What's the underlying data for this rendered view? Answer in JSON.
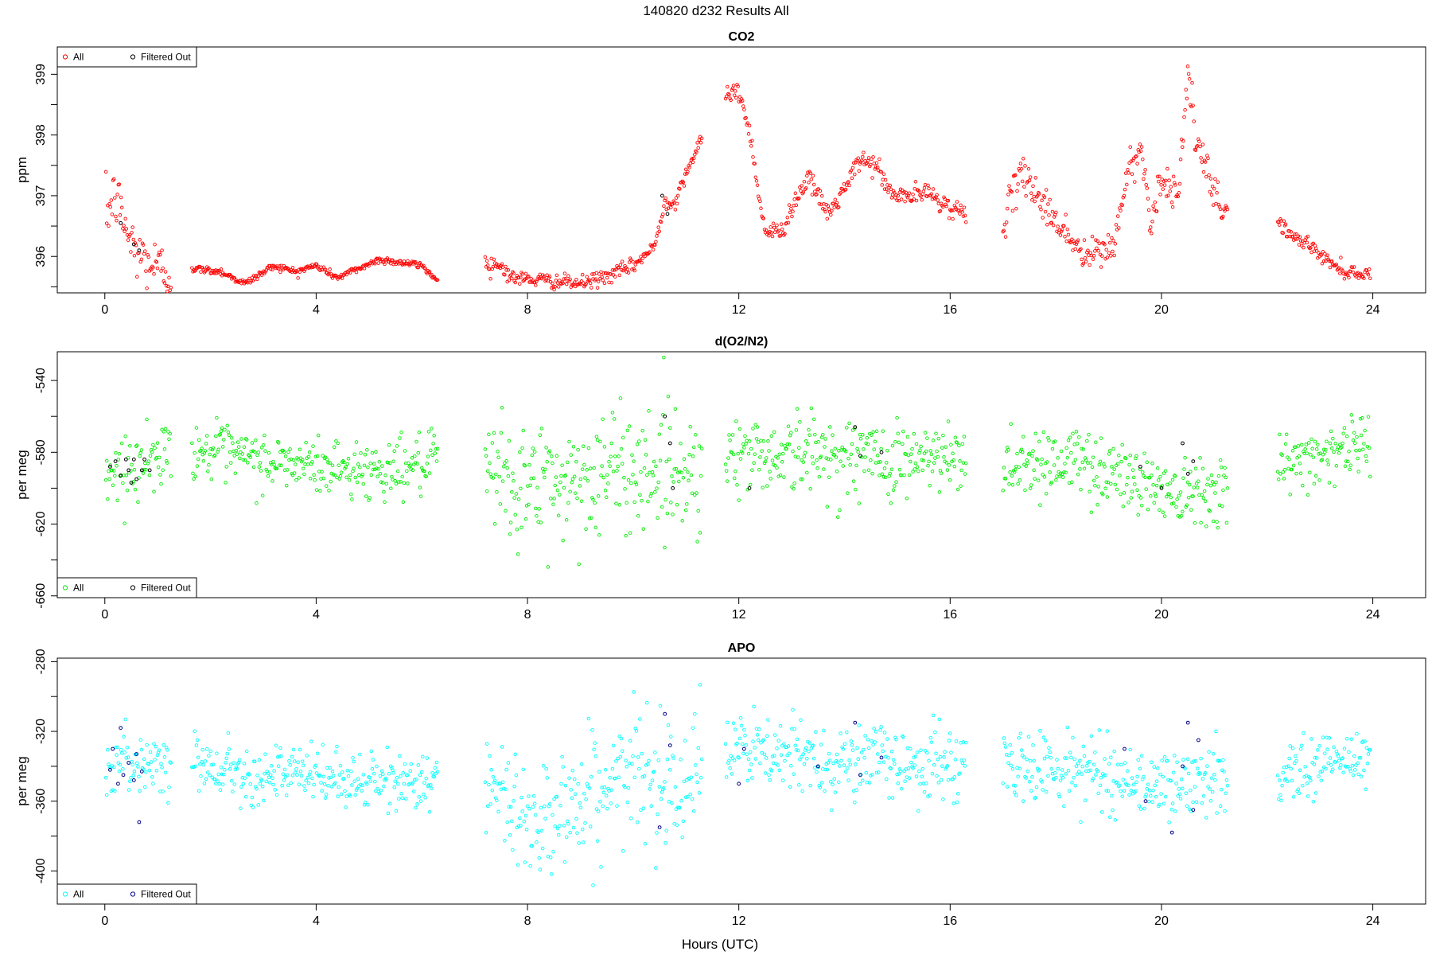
{
  "figure_title": "140820   d232   Results All",
  "xlabel": "Hours (UTC)",
  "chart_data": [
    {
      "type": "scatter",
      "title": "CO2",
      "ylabel": "ppm",
      "xlim": [
        -0.9,
        25.0
      ],
      "ylim": [
        395.4,
        399.45
      ],
      "xticks": [
        "0",
        "4",
        "8",
        "12",
        "16",
        "20",
        "24"
      ],
      "yticks": [
        "396",
        "397",
        "398",
        "399"
      ],
      "legend_position": "top-left",
      "legend": [
        "All",
        "Filtered Out"
      ],
      "colors": {
        "all": "#ff0000",
        "filtered": "#000000"
      },
      "noise": 0.03,
      "segments": [
        {
          "start": 0.02,
          "end": 1.25,
          "anchors": [
            [
              0.02,
              396.7
            ],
            [
              0.2,
              397.0
            ],
            [
              0.35,
              396.6
            ],
            [
              0.5,
              396.2
            ],
            [
              0.7,
              396.0
            ],
            [
              1.0,
              395.8
            ],
            [
              1.25,
              395.7
            ]
          ],
          "noise": 0.25
        },
        {
          "start": 1.65,
          "end": 6.3,
          "anchors": [
            [
              1.65,
              395.8
            ],
            [
              2.2,
              395.75
            ],
            [
              2.65,
              395.55
            ],
            [
              3.2,
              395.85
            ],
            [
              3.6,
              395.75
            ],
            [
              4.0,
              395.85
            ],
            [
              4.4,
              395.65
            ],
            [
              4.8,
              395.8
            ],
            [
              5.2,
              395.95
            ],
            [
              5.6,
              395.9
            ],
            [
              6.0,
              395.85
            ],
            [
              6.3,
              395.6
            ]
          ]
        },
        {
          "start": 7.2,
          "end": 11.3,
          "anchors": [
            [
              7.2,
              395.9
            ],
            [
              7.5,
              395.85
            ],
            [
              7.7,
              395.65
            ],
            [
              8.4,
              395.6
            ],
            [
              9.0,
              395.55
            ],
            [
              9.6,
              395.7
            ],
            [
              10.0,
              395.85
            ],
            [
              10.4,
              396.15
            ],
            [
              10.6,
              396.9
            ],
            [
              10.8,
              396.9
            ],
            [
              11.0,
              397.4
            ],
            [
              11.3,
              397.9
            ]
          ],
          "noise": 0.06
        },
        {
          "start": 11.75,
          "end": 16.3,
          "anchors": [
            [
              11.75,
              398.6
            ],
            [
              11.95,
              398.8
            ],
            [
              12.2,
              398.1
            ],
            [
              12.35,
              397.2
            ],
            [
              12.5,
              396.4
            ],
            [
              12.8,
              396.4
            ],
            [
              13.0,
              396.8
            ],
            [
              13.3,
              397.3
            ],
            [
              13.7,
              396.7
            ],
            [
              14.0,
              397.1
            ],
            [
              14.3,
              397.6
            ],
            [
              14.6,
              397.5
            ],
            [
              14.9,
              397.0
            ],
            [
              15.3,
              397.0
            ],
            [
              15.6,
              397.05
            ],
            [
              16.0,
              396.8
            ],
            [
              16.3,
              396.7
            ]
          ],
          "noise": 0.08
        },
        {
          "start": 17.0,
          "end": 21.25,
          "anchors": [
            [
              17.0,
              396.6
            ],
            [
              17.4,
              397.4
            ],
            [
              17.8,
              396.8
            ],
            [
              18.2,
              396.4
            ],
            [
              18.5,
              396.0
            ],
            [
              18.8,
              396.05
            ],
            [
              19.1,
              396.2
            ],
            [
              19.4,
              397.5
            ],
            [
              19.6,
              397.8
            ],
            [
              19.8,
              396.6
            ],
            [
              20.0,
              397.3
            ],
            [
              20.3,
              397.0
            ],
            [
              20.5,
              399.0
            ],
            [
              20.65,
              397.9
            ],
            [
              21.0,
              397.0
            ],
            [
              21.25,
              396.7
            ]
          ],
          "noise": 0.15
        },
        {
          "start": 22.2,
          "end": 23.95,
          "anchors": [
            [
              22.2,
              396.6
            ],
            [
              22.5,
              396.3
            ],
            [
              22.8,
              396.2
            ],
            [
              23.1,
              395.95
            ],
            [
              23.5,
              395.75
            ],
            [
              23.95,
              395.7
            ]
          ],
          "noise": 0.06
        }
      ],
      "filtered_points": [
        [
          0.3,
          396.55
        ],
        [
          0.55,
          396.2
        ],
        [
          0.65,
          396.1
        ],
        [
          10.55,
          397.0
        ],
        [
          10.65,
          396.7
        ]
      ]
    },
    {
      "type": "scatter",
      "title": "d(O2/N2)",
      "ylabel": "per meg",
      "xlim": [
        -0.9,
        25.0
      ],
      "ylim": [
        -661,
        -524
      ],
      "xticks": [
        "0",
        "4",
        "8",
        "12",
        "16",
        "20",
        "24"
      ],
      "yticks": [
        "-660",
        "-620",
        "-580",
        "-540"
      ],
      "legend_position": "bottom-left",
      "legend": [
        "All",
        "Filtered Out"
      ],
      "colors": {
        "all": "#00ee00",
        "filtered": "#000000"
      },
      "noise": 8,
      "segments": [
        {
          "start": 0.02,
          "end": 1.25,
          "anchors": [
            [
              0.02,
              -590
            ],
            [
              0.6,
              -588
            ],
            [
              1.25,
              -578
            ]
          ]
        },
        {
          "start": 1.65,
          "end": 6.3,
          "anchors": [
            [
              1.65,
              -578
            ],
            [
              3.0,
              -585
            ],
            [
              4.0,
              -588
            ],
            [
              5.0,
              -590
            ],
            [
              6.3,
              -586
            ]
          ]
        },
        {
          "start": 7.2,
          "end": 11.3,
          "anchors": [
            [
              7.2,
              -592
            ],
            [
              8.0,
              -600
            ],
            [
              9.0,
              -595
            ],
            [
              10.0,
              -588
            ],
            [
              11.3,
              -590
            ]
          ],
          "noise": 18
        },
        {
          "start": 11.75,
          "end": 16.3,
          "anchors": [
            [
              11.75,
              -582
            ],
            [
              13.0,
              -580
            ],
            [
              14.5,
              -583
            ],
            [
              16.3,
              -585
            ]
          ],
          "noise": 11
        },
        {
          "start": 17.0,
          "end": 21.25,
          "anchors": [
            [
              17.0,
              -585
            ],
            [
              18.5,
              -585
            ],
            [
              20.0,
              -600
            ],
            [
              21.25,
              -598
            ]
          ],
          "noise": 10
        },
        {
          "start": 22.2,
          "end": 23.95,
          "anchors": [
            [
              22.2,
              -590
            ],
            [
              23.0,
              -580
            ],
            [
              23.95,
              -575
            ]
          ],
          "noise": 9
        }
      ],
      "filtered_points": [
        [
          0.1,
          -588
        ],
        [
          0.2,
          -585
        ],
        [
          0.3,
          -593
        ],
        [
          0.4,
          -584
        ],
        [
          0.45,
          -590
        ],
        [
          0.5,
          -597
        ],
        [
          0.55,
          -584
        ],
        [
          0.6,
          -595
        ],
        [
          0.7,
          -590
        ],
        [
          0.75,
          -584
        ],
        [
          0.85,
          -590
        ],
        [
          10.6,
          -560
        ],
        [
          10.7,
          -575
        ],
        [
          10.75,
          -600
        ],
        [
          12.2,
          -600
        ],
        [
          14.2,
          -566
        ],
        [
          14.3,
          -582
        ],
        [
          14.7,
          -580
        ],
        [
          19.6,
          -588
        ],
        [
          20.0,
          -600
        ],
        [
          20.4,
          -575
        ],
        [
          20.5,
          -592
        ],
        [
          20.6,
          -585
        ]
      ]
    },
    {
      "type": "scatter",
      "title": "APO",
      "ylabel": "per meg",
      "xlim": [
        -0.9,
        25.0
      ],
      "ylim": [
        -419,
        -278
      ],
      "xticks": [
        "0",
        "4",
        "8",
        "12",
        "16",
        "20",
        "24"
      ],
      "yticks": [
        "-400",
        "-360",
        "-320",
        "-280"
      ],
      "legend_position": "bottom-left",
      "legend": [
        "All",
        "Filtered Out"
      ],
      "colors": {
        "all": "#00ffff",
        "filtered": "#00008b"
      },
      "noise": 8,
      "segments": [
        {
          "start": 0.02,
          "end": 1.25,
          "anchors": [
            [
              0.02,
              -340
            ],
            [
              0.6,
              -338
            ],
            [
              1.25,
              -335
            ]
          ]
        },
        {
          "start": 1.65,
          "end": 6.3,
          "anchors": [
            [
              1.65,
              -338
            ],
            [
              3.0,
              -345
            ],
            [
              4.0,
              -345
            ],
            [
              5.0,
              -350
            ],
            [
              6.3,
              -347
            ]
          ]
        },
        {
          "start": 7.2,
          "end": 11.3,
          "anchors": [
            [
              7.2,
              -355
            ],
            [
              8.0,
              -370
            ],
            [
              9.0,
              -360
            ],
            [
              10.0,
              -345
            ],
            [
              11.3,
              -345
            ]
          ],
          "noise": 18
        },
        {
          "start": 11.75,
          "end": 16.3,
          "anchors": [
            [
              11.75,
              -330
            ],
            [
              13.0,
              -335
            ],
            [
              14.5,
              -337
            ],
            [
              16.3,
              -340
            ]
          ],
          "noise": 11
        },
        {
          "start": 17.0,
          "end": 21.25,
          "anchors": [
            [
              17.0,
              -340
            ],
            [
              18.5,
              -342
            ],
            [
              20.0,
              -352
            ],
            [
              21.25,
              -348
            ]
          ],
          "noise": 10
        },
        {
          "start": 22.2,
          "end": 23.95,
          "anchors": [
            [
              22.2,
              -345
            ],
            [
              23.0,
              -338
            ],
            [
              23.95,
              -335
            ]
          ],
          "noise": 9
        }
      ],
      "filtered_points": [
        [
          0.1,
          -342
        ],
        [
          0.15,
          -330
        ],
        [
          0.25,
          -350
        ],
        [
          0.3,
          -318
        ],
        [
          0.35,
          -345
        ],
        [
          0.45,
          -338
        ],
        [
          0.55,
          -348
        ],
        [
          0.6,
          -333
        ],
        [
          0.65,
          -372
        ],
        [
          0.7,
          -343
        ],
        [
          10.5,
          -375
        ],
        [
          10.6,
          -310
        ],
        [
          10.7,
          -328
        ],
        [
          12.0,
          -350
        ],
        [
          12.1,
          -330
        ],
        [
          13.5,
          -340
        ],
        [
          14.2,
          -315
        ],
        [
          14.3,
          -345
        ],
        [
          14.7,
          -335
        ],
        [
          19.3,
          -330
        ],
        [
          19.7,
          -360
        ],
        [
          20.2,
          -378
        ],
        [
          20.4,
          -340
        ],
        [
          20.5,
          -315
        ],
        [
          20.6,
          -365
        ],
        [
          20.7,
          -325
        ]
      ]
    }
  ]
}
